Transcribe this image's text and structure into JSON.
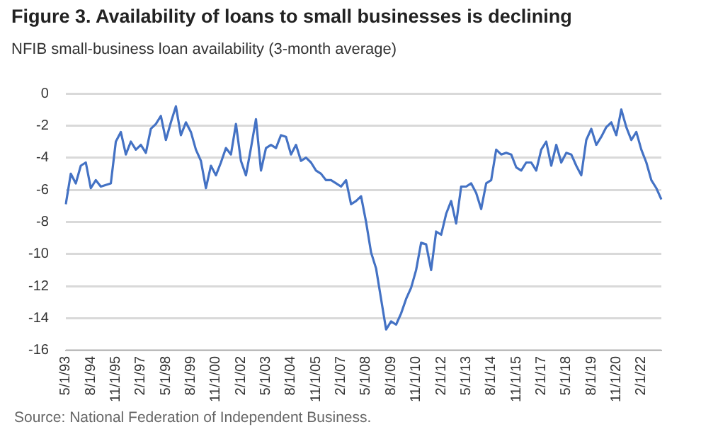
{
  "chart_data": {
    "type": "line",
    "title": "Figure 3. Availability of loans to small businesses is declining",
    "subtitle": "NFIB small-business loan availability (3-month average)",
    "annotations": [
      "Source: National Federation of Independent Business."
    ],
    "categories": [
      "5/1/93",
      null,
      null,
      null,
      null,
      "8/1/94",
      null,
      null,
      null,
      null,
      "11/1/95",
      null,
      null,
      null,
      null,
      "2/1/97",
      null,
      null,
      null,
      null,
      "5/1/98",
      null,
      null,
      null,
      null,
      "8/1/99",
      null,
      null,
      null,
      null,
      "11/1/00",
      null,
      null,
      null,
      null,
      "2/1/02",
      null,
      null,
      null,
      null,
      "5/1/03",
      null,
      null,
      null,
      null,
      "8/1/04",
      null,
      null,
      null,
      null,
      "11/1/05",
      null,
      null,
      null,
      null,
      "2/1/07",
      null,
      null,
      null,
      null,
      "5/1/08",
      null,
      null,
      null,
      null,
      "8/1/09",
      null,
      null,
      null,
      null,
      "11/1/10",
      null,
      null,
      null,
      null,
      "2/1/12",
      null,
      null,
      null,
      null,
      "5/1/13",
      null,
      null,
      null,
      null,
      "8/1/14",
      null,
      null,
      null,
      null,
      "11/1/15",
      null,
      null,
      null,
      null,
      "2/1/17",
      null,
      null,
      null,
      null,
      "5/1/18",
      null,
      null,
      null,
      null,
      "8/1/19",
      null,
      null,
      null,
      null,
      "11/1/20",
      null,
      null,
      null,
      null,
      "2/1/22",
      null,
      null,
      null,
      null
    ],
    "values": [
      -6.9,
      -5.0,
      -5.6,
      -4.5,
      -4.3,
      -5.9,
      -5.4,
      -5.8,
      -5.7,
      -5.6,
      -3.0,
      -2.4,
      -3.8,
      -3.0,
      -3.5,
      -3.2,
      -3.7,
      -2.2,
      -1.9,
      -1.4,
      -2.9,
      -1.8,
      -0.8,
      -2.6,
      -1.8,
      -2.4,
      -3.5,
      -4.2,
      -5.9,
      -4.5,
      -5.1,
      -4.3,
      -3.4,
      -3.8,
      -1.9,
      -4.2,
      -5.1,
      -3.4,
      -1.6,
      -4.8,
      -3.4,
      -3.2,
      -3.4,
      -2.6,
      -2.7,
      -3.8,
      -3.2,
      -4.2,
      -4.0,
      -4.3,
      -4.8,
      -5.0,
      -5.4,
      -5.4,
      -5.6,
      -5.8,
      -5.4,
      -6.9,
      -6.7,
      -6.4,
      -8.0,
      -9.9,
      -10.9,
      -12.8,
      -14.7,
      -14.2,
      -14.4,
      -13.7,
      -12.8,
      -12.1,
      -11.0,
      -9.3,
      -9.4,
      -11.0,
      -8.6,
      -8.8,
      -7.5,
      -6.7,
      -8.1,
      -5.8,
      -5.8,
      -5.6,
      -6.2,
      -7.2,
      -5.6,
      -5.4,
      -3.5,
      -3.8,
      -3.7,
      -3.8,
      -4.6,
      -4.8,
      -4.3,
      -4.3,
      -4.8,
      -3.5,
      -3.0,
      -4.5,
      -3.2,
      -4.3,
      -3.7,
      -3.8,
      -4.5,
      -5.1,
      -2.9,
      -2.2,
      -3.2,
      -2.7,
      -2.1,
      -1.8,
      -2.6,
      -1.0,
      -2.1,
      -2.9,
      -2.4,
      -3.5,
      -4.3,
      -5.4,
      -5.9,
      -6.6
    ],
    "color": "#4472c4",
    "ylim": [
      -16,
      0
    ],
    "yticks": [
      -16,
      -14,
      -12,
      -10,
      -8,
      -6,
      -4,
      -2,
      0
    ],
    "grid": "y",
    "legend": false,
    "marker": "none",
    "line_style": "solid"
  }
}
